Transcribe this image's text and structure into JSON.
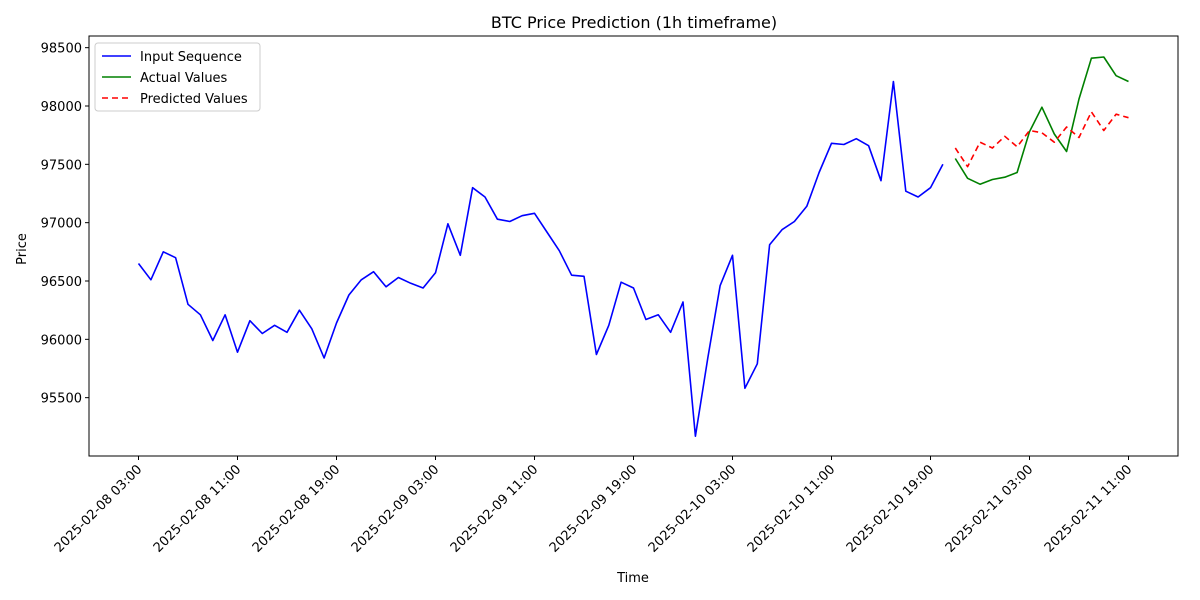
{
  "chart_data": {
    "type": "line",
    "title": "BTC Price Prediction (1h timeframe)",
    "xlabel": "Time",
    "ylabel": "Price",
    "ylim": [
      95000,
      98600
    ],
    "xlim_hours": [
      -4,
      84
    ],
    "grid": false,
    "legend_position": "top-left",
    "x_ticks": [
      {
        "hour": 0,
        "label": "2025-02-08 03:00"
      },
      {
        "hour": 8,
        "label": "2025-02-08 11:00"
      },
      {
        "hour": 16,
        "label": "2025-02-08 19:00"
      },
      {
        "hour": 24,
        "label": "2025-02-09 03:00"
      },
      {
        "hour": 32,
        "label": "2025-02-09 11:00"
      },
      {
        "hour": 40,
        "label": "2025-02-09 19:00"
      },
      {
        "hour": 48,
        "label": "2025-02-10 03:00"
      },
      {
        "hour": 56,
        "label": "2025-02-10 11:00"
      },
      {
        "hour": 64,
        "label": "2025-02-10 19:00"
      },
      {
        "hour": 72,
        "label": "2025-02-11 03:00"
      },
      {
        "hour": 80,
        "label": "2025-02-11 11:00"
      }
    ],
    "y_ticks": [
      95500,
      96000,
      96500,
      97000,
      97500,
      98000,
      98500
    ],
    "series": [
      {
        "name": "Input Sequence",
        "color": "#0000ff",
        "dash": "solid",
        "x": [
          0,
          1,
          2,
          3,
          4,
          5,
          6,
          7,
          8,
          9,
          10,
          11,
          12,
          13,
          14,
          15,
          16,
          17,
          18,
          19,
          20,
          21,
          22,
          23,
          24,
          25,
          26,
          27,
          28,
          29,
          30,
          31,
          32,
          33,
          34,
          35,
          36,
          37,
          38,
          39,
          40,
          41,
          42,
          43,
          44,
          45,
          46,
          47,
          48,
          49,
          50,
          51,
          52,
          53,
          54,
          55,
          56,
          57,
          58,
          59,
          60,
          61,
          62,
          63,
          64,
          65
        ],
        "y": [
          96650,
          96510,
          96750,
          96700,
          96300,
          96210,
          95990,
          96210,
          95890,
          96160,
          96050,
          96120,
          96060,
          96250,
          96090,
          95840,
          96140,
          96380,
          96510,
          96580,
          96450,
          96530,
          96480,
          96440,
          96570,
          96990,
          96720,
          97300,
          97220,
          97030,
          97010,
          97060,
          97080,
          96920,
          96760,
          96550,
          96540,
          95870,
          96120,
          96490,
          96440,
          96170,
          96210,
          96060,
          96320,
          95170,
          95840,
          96460,
          96720,
          95580,
          95790,
          96810,
          96940,
          97010,
          97140,
          97430,
          97680,
          97670,
          97720,
          97660,
          97360,
          98210,
          97270,
          97220,
          97300,
          97500
        ]
      },
      {
        "name": "Actual Values",
        "color": "#008000",
        "dash": "solid",
        "x": [
          66,
          67,
          68,
          69,
          70,
          71,
          72,
          73,
          74,
          75,
          76,
          77,
          78,
          79,
          80
        ],
        "y": [
          97550,
          97380,
          97330,
          97370,
          97390,
          97430,
          97780,
          97990,
          97760,
          97610,
          98060,
          98410,
          98420,
          98260,
          98210
        ]
      },
      {
        "name": "Predicted Values",
        "color": "#ff0000",
        "dash": "dashed",
        "x": [
          66,
          67,
          68,
          69,
          70,
          71,
          72,
          73,
          74,
          75,
          76,
          77,
          78,
          79,
          80
        ],
        "y": [
          97640,
          97480,
          97690,
          97640,
          97740,
          97650,
          97790,
          97770,
          97690,
          97820,
          97730,
          97950,
          97790,
          97930,
          97900
        ]
      }
    ]
  }
}
